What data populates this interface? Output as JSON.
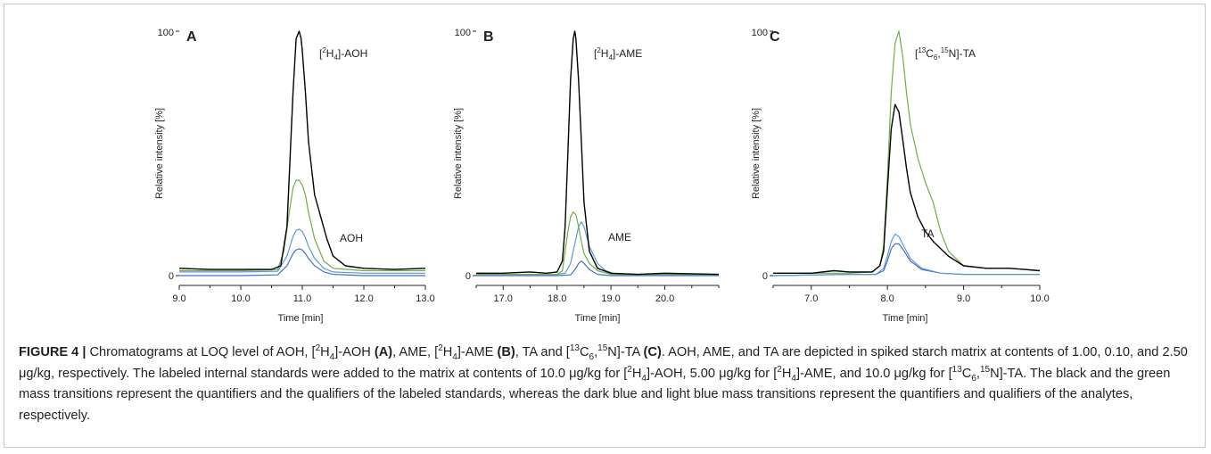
{
  "chart_data": [
    {
      "type": "line",
      "panel_label": "A",
      "xlabel": "Time [min]",
      "ylabel": "Relative intensity [%]",
      "xlim": [
        9.0,
        13.0
      ],
      "ylim": [
        0,
        100
      ],
      "x_ticks": [
        "9.0",
        "10.0",
        "11.0",
        "12.0",
        "13.0"
      ],
      "y_ticks": [
        "0",
        "100"
      ],
      "annotations": {
        "standard": {
          "pre": "[",
          "sup": "2",
          "base": "H",
          "sub": "4",
          "post": "]-AOH"
        },
        "analyte": "AOH"
      },
      "series": [
        {
          "color": "#4472c4",
          "x": [
            9.0,
            10.0,
            10.6,
            10.75,
            10.85,
            10.9,
            10.95,
            11.0,
            11.05,
            11.1,
            11.2,
            11.35,
            11.5,
            12.0,
            13.0
          ],
          "y": [
            0,
            0,
            0.3,
            4,
            9,
            10.5,
            11,
            10.5,
            9,
            7,
            4,
            1.5,
            0.5,
            0,
            0
          ]
        },
        {
          "color": "#5b9bd5",
          "x": [
            9.0,
            10.0,
            10.6,
            10.75,
            10.85,
            10.9,
            10.95,
            11.0,
            11.05,
            11.1,
            11.2,
            11.35,
            11.5,
            12.0,
            13.0
          ],
          "y": [
            1.5,
            1.5,
            1.8,
            8,
            16,
            18.5,
            19,
            18,
            15.5,
            12,
            7,
            3,
            1.5,
            1,
            1
          ]
        },
        {
          "color": "#70ad47",
          "x": [
            9.0,
            10.0,
            10.6,
            10.7,
            10.8,
            10.85,
            10.9,
            10.95,
            11.0,
            11.05,
            11.1,
            11.2,
            11.35,
            11.5,
            12.0,
            13.0
          ],
          "y": [
            2,
            2,
            2.5,
            10,
            28,
            36,
            39,
            39,
            37,
            33,
            26,
            15,
            6,
            3,
            2,
            2
          ]
        },
        {
          "color": "#000000",
          "x": [
            9.0,
            9.5,
            10.0,
            10.5,
            10.65,
            10.75,
            10.85,
            10.9,
            10.95,
            10.98,
            11.0,
            11.05,
            11.1,
            11.2,
            11.3,
            11.4,
            11.5,
            11.7,
            12.0,
            12.5,
            13.0
          ],
          "y": [
            3,
            2.5,
            2.5,
            2.5,
            4,
            20,
            75,
            97,
            100,
            97,
            92,
            75,
            55,
            33,
            24,
            15,
            8,
            4,
            3,
            2.5,
            3
          ]
        }
      ]
    },
    {
      "type": "line",
      "panel_label": "B",
      "xlabel": "Time [min]",
      "ylabel": "Relative intensity [%]",
      "xlim": [
        16.5,
        21.0
      ],
      "ylim": [
        0,
        100
      ],
      "x_ticks": [
        "17.0",
        "18.0",
        "19.0",
        "20.0"
      ],
      "y_ticks": [
        "0",
        "100"
      ],
      "annotations": {
        "standard": {
          "pre": "[",
          "sup": "2",
          "base": "H",
          "sub": "4",
          "post": "]-AME"
        },
        "analyte": "AME"
      },
      "series": [
        {
          "color": "#4472c4",
          "x": [
            16.5,
            18.0,
            18.25,
            18.35,
            18.4,
            18.45,
            18.5,
            18.6,
            18.75,
            19.0,
            21.0
          ],
          "y": [
            0,
            0,
            0.3,
            3,
            5,
            6,
            5,
            2.5,
            0.5,
            0,
            0
          ]
        },
        {
          "color": "#5b9bd5",
          "x": [
            16.5,
            18.0,
            18.15,
            18.25,
            18.35,
            18.4,
            18.45,
            18.5,
            18.6,
            18.75,
            18.9,
            19.1,
            21.0
          ],
          "y": [
            0.5,
            0.5,
            1,
            5,
            15,
            20,
            22,
            20,
            12,
            5,
            2,
            0.5,
            0.5
          ]
        },
        {
          "color": "#70ad47",
          "x": [
            16.5,
            18.0,
            18.1,
            18.2,
            18.25,
            18.3,
            18.35,
            18.4,
            18.45,
            18.5,
            18.6,
            18.75,
            19.0,
            21.0
          ],
          "y": [
            0.5,
            0.5,
            2,
            18,
            24,
            26,
            25,
            20,
            14,
            9,
            5,
            2,
            0.5,
            0.5
          ]
        },
        {
          "color": "#000000",
          "x": [
            16.5,
            17.0,
            17.5,
            17.8,
            18.0,
            18.1,
            18.15,
            18.2,
            18.25,
            18.3,
            18.33,
            18.35,
            18.4,
            18.45,
            18.5,
            18.6,
            18.75,
            19.0,
            19.5,
            20.0,
            21.0
          ],
          "y": [
            1,
            1,
            1.5,
            1,
            1.5,
            6,
            20,
            50,
            80,
            97,
            100,
            97,
            80,
            55,
            30,
            10,
            3,
            1,
            0.5,
            1,
            0.5
          ]
        }
      ]
    },
    {
      "type": "line",
      "panel_label": "C",
      "xlabel": "Time [min]",
      "ylabel": "Relative intensity [%]",
      "xlim": [
        6.5,
        10.0
      ],
      "ylim": [
        0,
        100
      ],
      "x_ticks": [
        "7.0",
        "8.0",
        "9.0",
        "10.0"
      ],
      "y_ticks": [
        "0",
        "100"
      ],
      "annotations": {
        "standard": {
          "pre": "[",
          "sup1": "13",
          "base1": "C",
          "sub1": "6",
          "mid": ",",
          "sup2": "15",
          "post": "N]-TA"
        },
        "analyte": "TA"
      },
      "series": [
        {
          "color": "#4472c4",
          "x": [
            6.5,
            7.5,
            7.85,
            7.95,
            8.0,
            8.05,
            8.1,
            8.15,
            8.2,
            8.3,
            8.45,
            8.7,
            9.0,
            9.5,
            10.0
          ],
          "y": [
            0,
            0.5,
            0.5,
            2,
            6,
            11,
            13,
            13,
            11,
            6,
            2.5,
            1,
            0.5,
            0.5,
            0.5
          ]
        },
        {
          "color": "#5b9bd5",
          "x": [
            6.5,
            7.5,
            7.85,
            7.95,
            8.0,
            8.05,
            8.1,
            8.15,
            8.2,
            8.3,
            8.45,
            8.7,
            9.0,
            9.5,
            10.0
          ],
          "y": [
            0,
            0.5,
            0.5,
            3,
            8,
            14,
            17,
            16,
            13,
            7,
            3,
            1,
            0.5,
            0.5,
            0.5
          ]
        },
        {
          "color": "#70ad47",
          "x": [
            6.5,
            7.0,
            7.5,
            7.8,
            7.9,
            7.95,
            8.0,
            8.05,
            8.1,
            8.15,
            8.2,
            8.25,
            8.3,
            8.4,
            8.5,
            8.6,
            8.7,
            8.8,
            9.0,
            9.3,
            9.6,
            9.8,
            10.0
          ],
          "y": [
            1,
            1,
            1,
            1.5,
            4,
            12,
            40,
            75,
            95,
            100,
            90,
            75,
            62,
            48,
            38,
            30,
            18,
            10,
            4,
            3,
            3,
            2.5,
            2
          ]
        },
        {
          "color": "#000000",
          "x": [
            6.5,
            7.0,
            7.3,
            7.5,
            7.8,
            7.9,
            7.95,
            8.0,
            8.05,
            8.1,
            8.15,
            8.2,
            8.25,
            8.3,
            8.4,
            8.5,
            8.6,
            8.7,
            8.8,
            9.0,
            9.3,
            9.6,
            9.8,
            10.0
          ],
          "y": [
            1,
            1,
            2,
            1.5,
            1.5,
            4,
            10,
            35,
            60,
            70,
            67,
            56,
            44,
            34,
            24,
            18,
            14,
            11,
            8,
            4,
            3,
            3,
            2.5,
            2
          ]
        }
      ]
    }
  ],
  "caption": {
    "label": "FIGURE 4 |",
    "s1": " Chromatograms at LOQ level of AOH, [",
    "s1_sup": "2",
    "s1_base": "H",
    "s1_sub": "4",
    "s1_post": "]-AOH ",
    "panel_a": "(A)",
    "s2": ", AME, [",
    "s2_sup": "2",
    "s2_base": "H",
    "s2_sub": "4",
    "s2_post": "]-AME ",
    "panel_b": "(B)",
    "s3": ", TA and [",
    "s3_sup1": "13",
    "s3_base": "C",
    "s3_sub": "6",
    "s3_mid": ",",
    "s3_sup2": "15",
    "s3_post": "N]-TA ",
    "panel_c": "(C)",
    "s4": ". AOH, AME, and TA are depicted in spiked starch matrix at contents of 1.00, 0.10, and 2.50 μg/kg, respectively. The labeled internal standards were added to the matrix at contents of 10.0 μg/kg for [",
    "s4_sup": "2",
    "s4_base": "H",
    "s4_sub": "4",
    "s4_post": "]-AOH, 5.00 μg/kg for [",
    "s5_sup": "2",
    "s5_base": "H",
    "s5_sub": "4",
    "s5_post": "]-AME, and 10.0 μg/kg for [",
    "s6_sup1": "13",
    "s6_base": "C",
    "s6_sub": "6",
    "s6_mid": ",",
    "s6_sup2": "15",
    "s6_post": "N]-TA. The black and the green mass transitions represent the quantifiers and the qualifiers of the labeled standards, whereas the dark blue and light blue mass transitions represent the quantifiers and qualifiers of the analytes, respectively."
  }
}
